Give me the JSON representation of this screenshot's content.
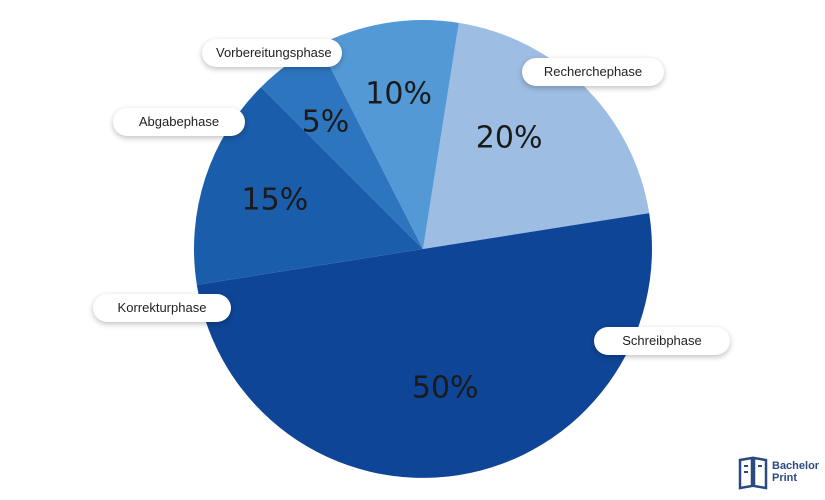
{
  "chart_data": {
    "type": "pie",
    "title": "",
    "slices": [
      {
        "label": "Recherchephase",
        "value": 20,
        "display": "20%",
        "color": "#9dbde3"
      },
      {
        "label": "Schreibphase",
        "value": 50,
        "display": "50%",
        "color": "#0f4596"
      },
      {
        "label": "Korrekturphase",
        "value": 15,
        "display": "15%",
        "color": "#1a5daa"
      },
      {
        "label": "Abgabephase",
        "value": 5,
        "display": "5%",
        "color": "#2d76bf"
      },
      {
        "label": "Vorbereitungsphase",
        "value": 10,
        "display": "10%",
        "color": "#5399d6"
      }
    ],
    "start_angle_deg": 9,
    "direction": "clockwise"
  },
  "brand": {
    "line1": "Bachelor",
    "line2": "Print",
    "color": "#2a4a7f"
  }
}
